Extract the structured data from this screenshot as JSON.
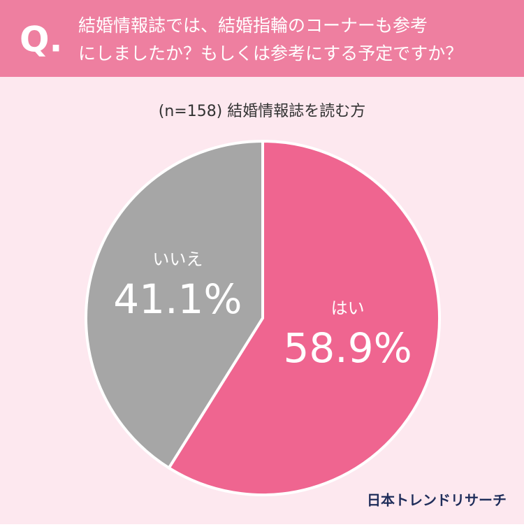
{
  "chart_data": {
    "type": "pie",
    "question_mark": "Q.",
    "title_lines": [
      "結婚情報誌では、結婚指輪のコーナーも参考",
      "にしましたか？もしくは参考にする予定ですか？"
    ],
    "subtitle": "(n=158) 結婚情報誌を読む方",
    "categories": [
      "はい",
      "いいえ"
    ],
    "values": [
      58.9,
      41.1
    ],
    "value_labels": [
      "58.9%",
      "41.1%"
    ],
    "colors": [
      "#ef6590",
      "#a6a6a6"
    ],
    "source": "日本トレンドリサーチ"
  }
}
